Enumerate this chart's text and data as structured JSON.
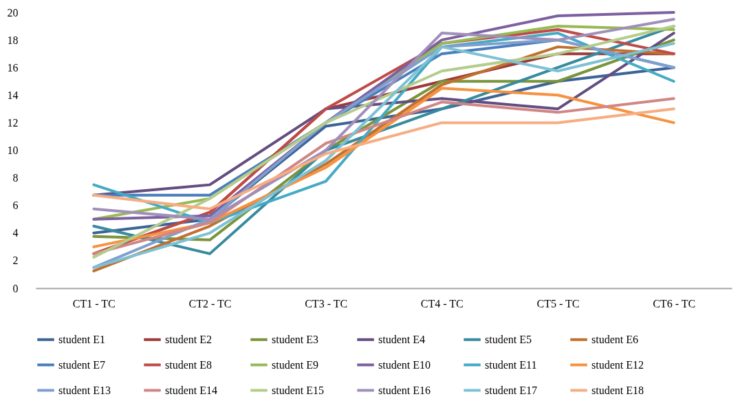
{
  "chart_data": {
    "type": "line",
    "categories": [
      "CT1 - TC",
      "CT2 - TC",
      "CT3 - TC",
      "CT4 - TC",
      "CT5 - TC",
      "CT6 - TC"
    ],
    "ylim": [
      0,
      20
    ],
    "yticks": [
      0,
      2,
      4,
      6,
      8,
      10,
      12,
      14,
      16,
      18,
      20
    ],
    "grid": false,
    "legend": "bottom",
    "marker": "none",
    "line_style": "solid",
    "series": [
      {
        "name": "student E1",
        "color": "#3c6497",
        "values": [
          4,
          5,
          11.75,
          13,
          15,
          16
        ]
      },
      {
        "name": "student E2",
        "color": "#9c3b39",
        "values": [
          2.5,
          5.5,
          13,
          15,
          17,
          17
        ]
      },
      {
        "name": "student E3",
        "color": "#7a943c",
        "values": [
          3.75,
          3.5,
          10,
          15,
          15,
          18
        ]
      },
      {
        "name": "student E4",
        "color": "#634d81",
        "values": [
          6.75,
          7.5,
          13,
          13.75,
          13,
          18.5
        ]
      },
      {
        "name": "student E5",
        "color": "#388a9d",
        "values": [
          4.5,
          2.5,
          10,
          13,
          16,
          19
        ]
      },
      {
        "name": "student E6",
        "color": "#c0702f",
        "values": [
          1.25,
          4.5,
          9,
          14.75,
          17.5,
          17
        ]
      },
      {
        "name": "student E7",
        "color": "#4a7ebb",
        "values": [
          6.75,
          6.75,
          12,
          17,
          18,
          16
        ]
      },
      {
        "name": "student E8",
        "color": "#be4b48",
        "values": [
          2.5,
          5.5,
          13,
          17.75,
          18.75,
          17
        ]
      },
      {
        "name": "student E9",
        "color": "#98b954",
        "values": [
          5,
          6.5,
          12,
          17.75,
          19,
          18.75
        ]
      },
      {
        "name": "student E10",
        "color": "#7d60a0",
        "values": [
          5,
          5.25,
          12,
          18,
          19.75,
          20
        ]
      },
      {
        "name": "student E11",
        "color": "#46aac5",
        "values": [
          7.5,
          4.75,
          7.75,
          17.5,
          18.5,
          15
        ]
      },
      {
        "name": "student E12",
        "color": "#f69240",
        "values": [
          3,
          4.75,
          8.75,
          14.5,
          14,
          12
        ]
      },
      {
        "name": "student E13",
        "color": "#7f9fcf",
        "values": [
          1.5,
          5,
          12,
          17.5,
          18,
          16
        ]
      },
      {
        "name": "student E14",
        "color": "#d08684",
        "values": [
          2.5,
          4.75,
          10.5,
          13.5,
          12.75,
          13.75
        ]
      },
      {
        "name": "student E15",
        "color": "#b4cc8c",
        "values": [
          2.25,
          6.5,
          12,
          15.75,
          17,
          19
        ]
      },
      {
        "name": "student E16",
        "color": "#a08fba",
        "values": [
          5.75,
          5,
          10,
          18.5,
          18,
          19.5
        ]
      },
      {
        "name": "student E17",
        "color": "#7ec1d4",
        "values": [
          1.5,
          4,
          9.25,
          17.5,
          15.75,
          17.75
        ]
      },
      {
        "name": "student E18",
        "color": "#f6ad81",
        "values": [
          6.75,
          5.75,
          9.75,
          12,
          12,
          13
        ]
      }
    ]
  }
}
